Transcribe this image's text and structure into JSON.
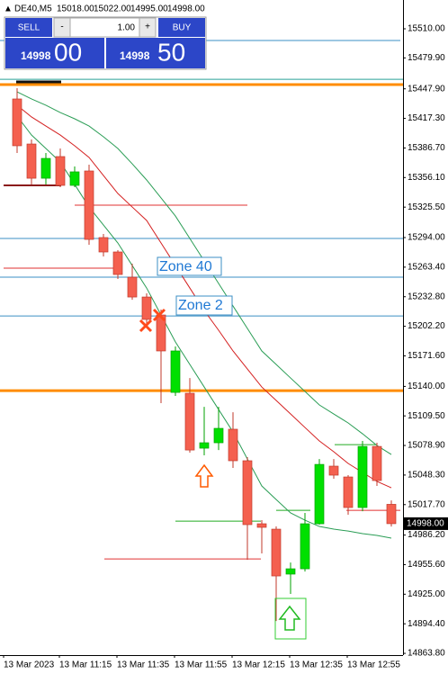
{
  "chart_data": {
    "type": "candlestick",
    "title": "DE40,M5",
    "header_ohlc": [
      "15018.00",
      "15022.00",
      "14995.00",
      "14998.00"
    ],
    "categories": [
      "13 Mar 2023",
      null,
      null,
      "13 Mar 11:15",
      null,
      null,
      null,
      "13 Mar 11:35",
      null,
      null,
      null,
      "13 Mar 11:55",
      null,
      null,
      null,
      "13 Mar 12:15",
      null,
      null,
      null,
      "13 Mar 12:35",
      null,
      null,
      null,
      "13 Mar 12:55",
      null,
      null,
      null
    ],
    "open": [
      15437.4,
      15390.8,
      15355.4,
      15377.8,
      15348.0,
      15362.9,
      15294.0,
      15279.1,
      15253.0,
      15232.5,
      15213.9,
      15133.8,
      15132.9,
      15076.1,
      15081.7,
      15095.7,
      15063.1,
      14997.9,
      14992.3,
      14945.8,
      14951.3,
      14997.9,
      15057.5,
      15046.3,
      15014.7,
      15077.9,
      15018.0
    ],
    "high": [
      15448.5,
      15395.5,
      15381.5,
      15386.2,
      15367.5,
      15369.4,
      15297.7,
      15281.0,
      15267.0,
      15236.3,
      15219.5,
      15181.3,
      15148.7,
      15118.9,
      15118.9,
      15113.3,
      15066.8,
      15001.6,
      14995.1,
      14957.8,
      15009.1,
      15064.9,
      15064.9,
      15048.2,
      15083.6,
      15081.7,
      15022.0
    ],
    "low": [
      15381.5,
      15348.9,
      15348.9,
      15346.1,
      15346.1,
      15286.5,
      15274.4,
      15251.2,
      15229.7,
      15204.6,
      15122.7,
      15130.1,
      15071.5,
      15068.7,
      15074.2,
      15055.6,
      14960.6,
      14967.2,
      14897.3,
      14925.3,
      14948.5,
      14997.0,
      15044.5,
      15007.2,
      15010.9,
      15037.0,
      14995.0
    ],
    "close": [
      15389.0,
      15355.4,
      15375.9,
      15348.0,
      15362.0,
      15292.1,
      15279.1,
      15255.8,
      15232.5,
      15209.3,
      15176.7,
      15176.7,
      15074.2,
      15081.7,
      15096.6,
      15063.1,
      14997.0,
      14994.2,
      14943.9,
      14951.3,
      14997.9,
      15059.3,
      15048.2,
      15014.7,
      15077.9,
      15042.6,
      14998.0
    ],
    "up_color": "#00e000",
    "down_color": "#f4604f",
    "ylim": [
      14862.0,
      15539.8
    ],
    "yticks": [
      {
        "value": 15510.0,
        "label": "15510.00"
      },
      {
        "value": 15479.9,
        "label": "15479.90"
      },
      {
        "value": 15447.9,
        "label": "15447.90"
      },
      {
        "value": 15417.3,
        "label": "15417.30"
      },
      {
        "value": 15386.7,
        "label": "15386.70"
      },
      {
        "value": 15356.1,
        "label": "15356.10"
      },
      {
        "value": 15325.5,
        "label": "15325.50"
      },
      {
        "value": 15294.0,
        "label": "15294.00"
      },
      {
        "value": 15263.4,
        "label": "15263.40"
      },
      {
        "value": 15232.8,
        "label": "15232.80"
      },
      {
        "value": 15202.2,
        "label": "15202.20"
      },
      {
        "value": 15171.6,
        "label": "15171.60"
      },
      {
        "value": 15140.0,
        "label": "15140.00"
      },
      {
        "value": 15109.5,
        "label": "15109.50"
      },
      {
        "value": 15078.9,
        "label": "15078.90"
      },
      {
        "value": 15048.3,
        "label": "15048.30"
      },
      {
        "value": 15017.7,
        "label": "15017.70"
      },
      {
        "value": 14986.2,
        "label": "14986.20"
      },
      {
        "value": 14955.6,
        "label": "14955.60"
      },
      {
        "value": 14925.0,
        "label": "14925.00"
      },
      {
        "value": 14894.4,
        "label": "14894.40"
      },
      {
        "value": 14863.8,
        "label": "14863.80"
      }
    ],
    "current_price": {
      "value": 14998.0,
      "label": "14998.00"
    },
    "indicators": [
      {
        "color": "#d42020",
        "values": [
          15430.9,
          15418.8,
          15409.4,
          15400.1,
          15389.0,
          15376.9,
          15358.2,
          15339.6,
          15325.6,
          15311.7,
          15288.4,
          15265.1,
          15241.8,
          15218.6,
          15198.1,
          15176.7,
          15158.0,
          15139.4,
          15125.5,
          15111.5,
          15097.5,
          15083.6,
          15072.4,
          15060.3,
          15051.0,
          15041.7,
          15035.1
        ]
      },
      {
        "color": "#2a9d55",
        "values": [
          15444.8,
          15437.4,
          15430.9,
          15423.4,
          15416.9,
          15409.4,
          15398.3,
          15386.2,
          15370.3,
          15353.6,
          15335.0,
          15316.3,
          15293.1,
          15269.8,
          15246.5,
          15223.2,
          15200.0,
          15176.7,
          15162.7,
          15148.7,
          15134.8,
          15120.8,
          15111.5,
          15102.2,
          15091.0,
          15078.9,
          15069.6
        ]
      },
      {
        "color": "#2a9d55",
        "values": [
          15419.7,
          15400.1,
          15386.2,
          15372.2,
          15349.0,
          15325.6,
          15307.0,
          15288.4,
          15265.1,
          15241.8,
          15213.9,
          15186.0,
          15162.7,
          15139.4,
          15116.1,
          15092.9,
          15064.9,
          15037.0,
          15023.0,
          15009.1,
          15001.6,
          14995.1,
          14992.3,
          14990.4,
          14987.7,
          14985.8,
          14983.0
        ]
      }
    ],
    "hlines": [
      {
        "value": 15497.9,
        "color": "#3b8fc4",
        "width": 1
      },
      {
        "value": 15457.7,
        "color": "#2aa198",
        "width": 1
      },
      {
        "value": 15455.1,
        "color": "#111111",
        "width": 3
      },
      {
        "value": 15452.3,
        "color": "#ff8c00",
        "width": 3
      },
      {
        "value": 15348.0,
        "color": "#8b1a1a",
        "width": 2
      },
      {
        "value": 15327.5,
        "color": "#e03030",
        "width": 1
      },
      {
        "value": 15293.1,
        "color": "#3b8fc4",
        "width": 1
      },
      {
        "value": 15262.3,
        "color": "#e03030",
        "width": 1
      },
      {
        "value": 15253.0,
        "color": "#3b8fc4",
        "width": 1
      },
      {
        "value": 15212.9,
        "color": "#3b8fc4",
        "width": 1
      },
      {
        "value": 15135.6,
        "color": "#ff8c00",
        "width": 3
      },
      {
        "value": 15079.8,
        "color": "#22aa22",
        "width": 1
      },
      {
        "value": 15011.8,
        "color": "#e03030",
        "width": 1
      },
      {
        "value": 15011.8,
        "color": "#22aa22",
        "width": 1
      },
      {
        "value": 15000.6,
        "color": "#22aa22",
        "width": 1
      },
      {
        "value": 14961.5,
        "color": "#e03030",
        "width": 1
      }
    ],
    "zones": [
      "Zone 40",
      "Zone 2"
    ],
    "trade_panel": {
      "sell": "SELL",
      "buy": "BUY",
      "minus": "-",
      "plus": "+",
      "lot": "1.00",
      "bid_main": "14998",
      "bid_pips": "00",
      "ask_main": "14998",
      "ask_pips": "50"
    }
  }
}
